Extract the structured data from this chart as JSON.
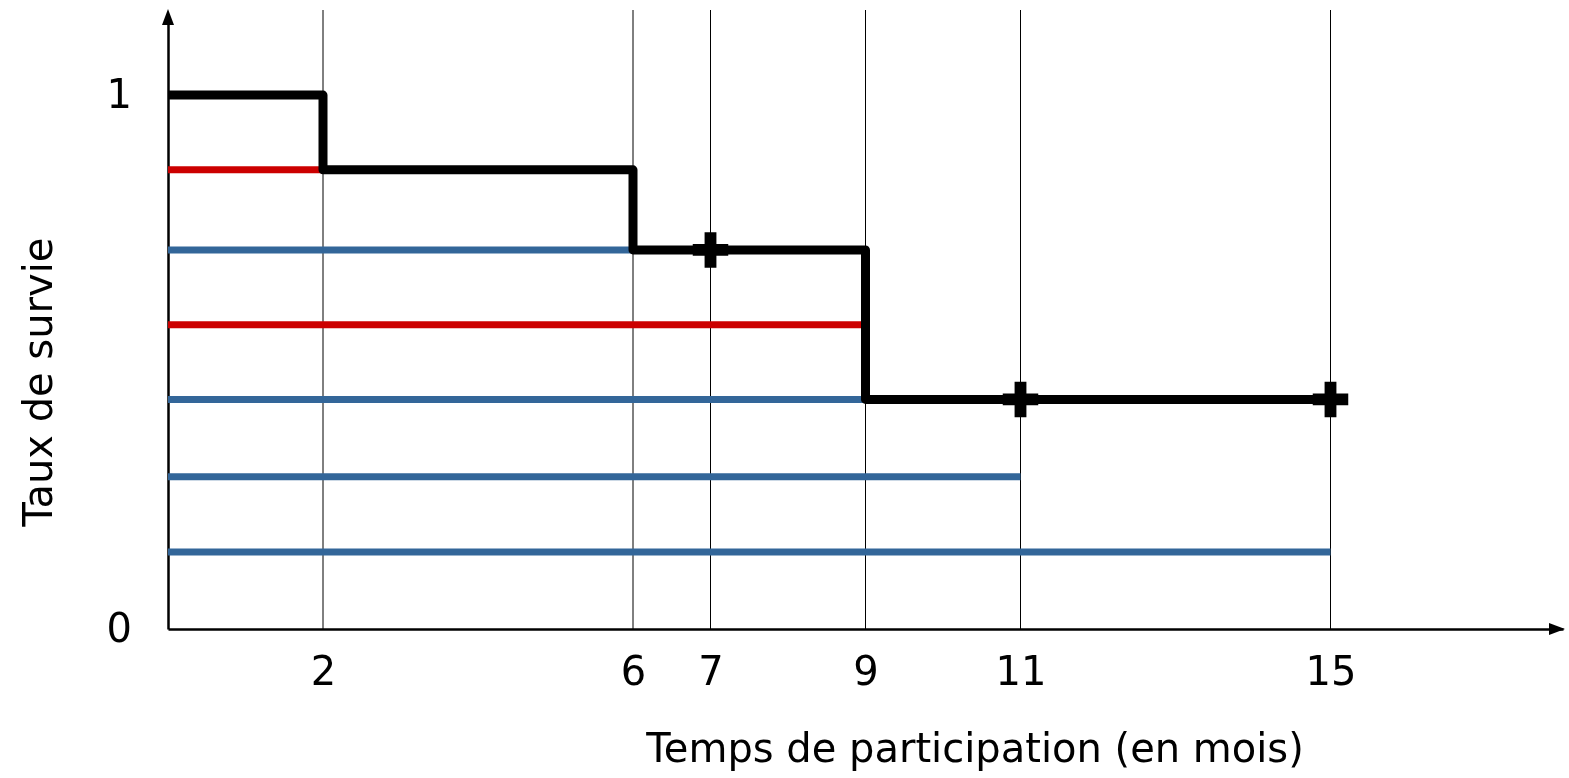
{
  "chart_data": {
    "type": "line",
    "xlabel": "Temps de participation (en mois)",
    "ylabel": "Taux de survie",
    "xlim": [
      0,
      18
    ],
    "xticks": [
      2,
      6,
      7,
      9,
      11,
      15
    ],
    "ylim": [
      0,
      1.15
    ],
    "yticks": [
      0,
      1
    ],
    "grid": "x",
    "marker": "none",
    "line_style": "solid",
    "series": [
      {
        "color": "#cc0000",
        "x": [
          0,
          2
        ],
        "values": [
          0.86,
          0.86
        ]
      },
      {
        "color": "#336699",
        "x": [
          0,
          6
        ],
        "values": [
          0.71,
          0.71
        ]
      },
      {
        "color": "#cc0000",
        "x": [
          0,
          9
        ],
        "values": [
          0.57,
          0.57
        ]
      },
      {
        "color": "#336699",
        "x": [
          0,
          9
        ],
        "values": [
          0.43,
          0.43
        ]
      },
      {
        "color": "#336699",
        "x": [
          0,
          11
        ],
        "values": [
          0.285,
          0.285
        ]
      },
      {
        "color": "#336699",
        "x": [
          0,
          15
        ],
        "values": [
          0.144,
          0.144
        ]
      },
      {
        "type": "scatter",
        "color": "#000000",
        "marker": "cross",
        "x": [
          7,
          11,
          15
        ],
        "values": [
          0.71,
          0.43,
          0.43
        ]
      },
      {
        "type": "step",
        "color": "#000000",
        "x": [
          0,
          2,
          6,
          9,
          15
        ],
        "values": [
          1,
          0.86,
          0.71,
          0.43,
          0.43
        ]
      }
    ]
  }
}
